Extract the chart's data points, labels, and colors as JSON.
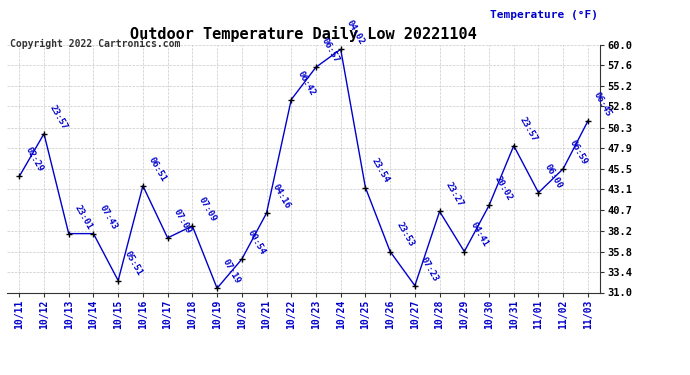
{
  "title": "Outdoor Temperature Daily Low 20221104",
  "copyright": "Copyright 2022 Cartronics.com",
  "ylabel": "Temperature (°F)",
  "x_labels": [
    "10/11",
    "10/12",
    "10/13",
    "10/14",
    "10/15",
    "10/16",
    "10/17",
    "10/18",
    "10/19",
    "10/20",
    "10/21",
    "10/22",
    "10/23",
    "10/24",
    "10/25",
    "10/26",
    "10/27",
    "10/28",
    "10/29",
    "10/30",
    "10/31",
    "11/01",
    "11/02",
    "11/03"
  ],
  "y_values": [
    44.6,
    49.6,
    37.9,
    37.9,
    32.4,
    43.5,
    37.4,
    38.8,
    31.5,
    34.9,
    40.3,
    53.6,
    57.4,
    59.5,
    43.3,
    35.8,
    31.8,
    40.5,
    35.8,
    41.2,
    48.2,
    42.7,
    45.5,
    51.1
  ],
  "time_labels": [
    "02:29",
    "23:57",
    "23:01",
    "07:43",
    "05:51",
    "06:51",
    "07:09",
    "07:09",
    "07:19",
    "00:54",
    "04:16",
    "06:42",
    "06:57",
    "04:02",
    "23:54",
    "23:53",
    "07:23",
    "23:27",
    "04:41",
    "20:02",
    "23:57",
    "06:00",
    "06:59",
    "06:45"
  ],
  "ylim_min": 31.0,
  "ylim_max": 60.0,
  "yticks": [
    31.0,
    33.4,
    35.8,
    38.2,
    40.7,
    43.1,
    45.5,
    47.9,
    50.3,
    52.8,
    55.2,
    57.6,
    60.0
  ],
  "line_color": "#0000cc",
  "marker_color": "#000000",
  "label_color": "#0000cc",
  "title_color": "#000000",
  "background_color": "#ffffff",
  "grid_color": "#bbbbbb"
}
